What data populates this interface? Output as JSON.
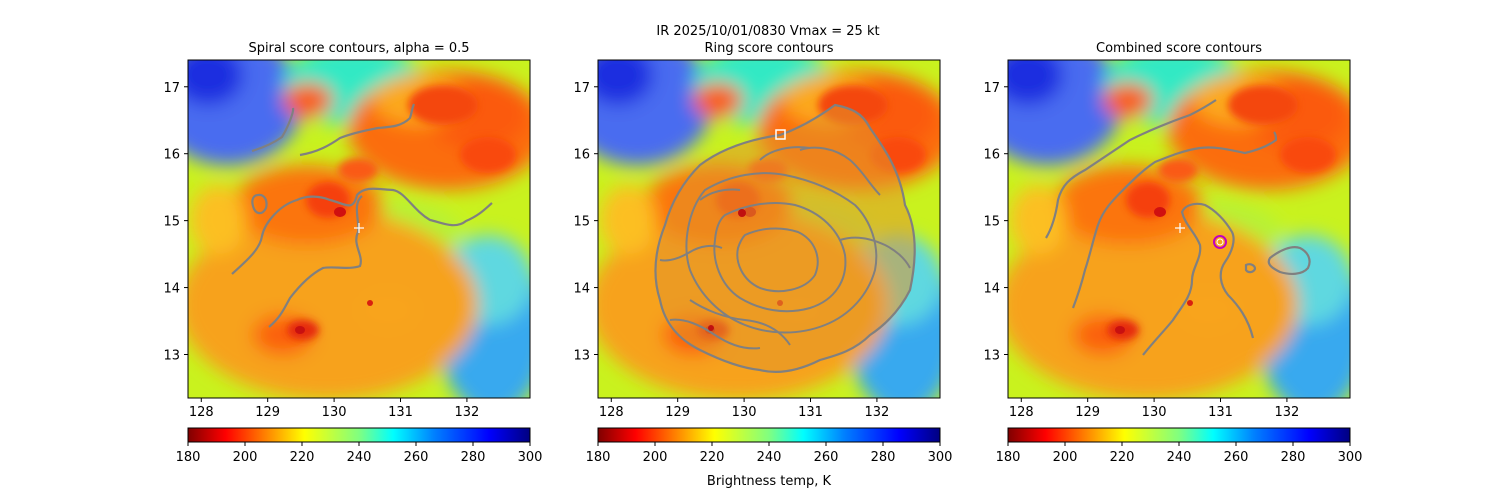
{
  "figure": {
    "suptitle_line1": "IR  2025/10/01/0830    Vmax = 25 kt",
    "colorbar_label": "Brightness temp, K"
  },
  "chart_data": [
    {
      "type": "heatmap",
      "title": "Spiral score contours, alpha =  0.5",
      "xlim": [
        127.8,
        132.95
      ],
      "ylim": [
        12.35,
        17.4
      ],
      "xticks": [
        128,
        129,
        130,
        131,
        132
      ],
      "yticks": [
        13,
        14,
        15,
        16,
        17
      ],
      "colormap": "jet_r",
      "colorbar": {
        "range": [
          180,
          300
        ],
        "ticks": [
          180,
          200,
          220,
          240,
          260,
          280,
          300
        ]
      },
      "center_marker": {
        "lon": 130.4,
        "lat": 14.87,
        "symbol": "+"
      },
      "contour_color": "#808080"
    },
    {
      "type": "heatmap",
      "title": "Ring score contours",
      "xlim": [
        127.8,
        132.95
      ],
      "ylim": [
        12.35,
        17.4
      ],
      "xticks": [
        128,
        129,
        130,
        131,
        132
      ],
      "yticks": [
        13,
        14,
        15,
        16,
        17
      ],
      "colormap": "jet_r",
      "colorbar": {
        "range": [
          180,
          300
        ],
        "ticks": [
          180,
          200,
          220,
          240,
          260,
          280,
          300
        ]
      },
      "ring_max_marker": {
        "lon": 130.55,
        "lat": 16.27,
        "symbol": "square"
      },
      "contour_color": "#808080"
    },
    {
      "type": "heatmap",
      "title": "Combined score contours",
      "xlim": [
        127.8,
        132.95
      ],
      "ylim": [
        12.35,
        17.4
      ],
      "xticks": [
        128,
        129,
        130,
        131,
        132
      ],
      "yticks": [
        13,
        14,
        15,
        16,
        17
      ],
      "colormap": "jet_r",
      "colorbar": {
        "range": [
          180,
          300
        ],
        "ticks": [
          180,
          200,
          220,
          240,
          260,
          280,
          300
        ]
      },
      "center_marker": {
        "lon": 130.35,
        "lat": 14.88,
        "symbol": "+"
      },
      "combined_max_marker": {
        "lon": 130.97,
        "lat": 14.68,
        "symbol": "circle"
      },
      "contour_color": "#808080"
    }
  ]
}
